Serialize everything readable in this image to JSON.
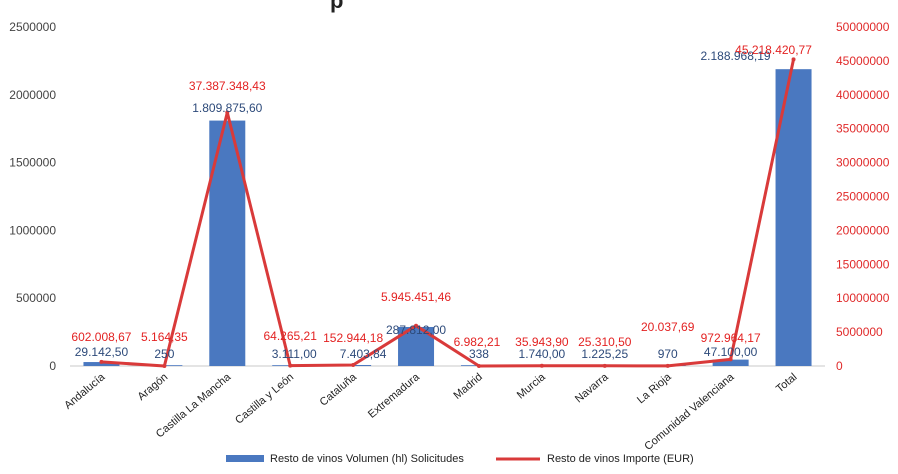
{
  "chart_data": {
    "type": "bar",
    "title_fragment": "p",
    "categories": [
      "Andalucía",
      "Aragón",
      "Castilla La Mancha",
      "Castilla y León",
      "Cataluña",
      "Extremadura",
      "Madrid",
      "Murcia",
      "Navarra",
      "La Rioja",
      "Comunidad Valenciana",
      "Total"
    ],
    "series": [
      {
        "name": "Resto de vinos Volumen (hl) Solicitudes",
        "type": "bar",
        "axis": "left",
        "color": "#4a78c0",
        "values": [
          29142.5,
          250,
          1809875.6,
          3111,
          7403.84,
          287812,
          338,
          1740,
          1225.25,
          970,
          47100,
          2188968.19
        ],
        "labels": [
          "29.142,50",
          "250",
          "1.809.875,60",
          "3.111,00",
          "7.403,84",
          "287.812,00",
          "338",
          "1.740,00",
          "1.225,25",
          "970",
          "47.100,00",
          "2.188.968,19"
        ]
      },
      {
        "name": "Resto de vinos Importe (EUR)",
        "type": "line",
        "axis": "right",
        "color": "#d93a3a",
        "values": [
          602008.67,
          5164.35,
          37387348.43,
          64265.21,
          152944.18,
          5945451.46,
          6982.21,
          35943.9,
          25310.5,
          20037.69,
          972964.17,
          45218420.77
        ],
        "labels": [
          "602.008,67",
          "5.164,35",
          "37.387.348,43",
          "64.265,21",
          "152.944,18",
          "5.945.451,46",
          "6.982,21",
          "35.943,90",
          "25.310,50",
          "20.037,69",
          "972.964,17",
          "45.218.420,77"
        ]
      }
    ],
    "left_axis": {
      "ylim": [
        0,
        2500000
      ],
      "ticks": [
        "0",
        "500000",
        "1000000",
        "1500000",
        "2000000",
        "2500000"
      ]
    },
    "right_axis": {
      "ylim": [
        0,
        50000000
      ],
      "ticks": [
        "0",
        "5000000",
        "10000000",
        "15000000",
        "20000000",
        "25000000",
        "30000000",
        "35000000",
        "40000000",
        "45000000",
        "50000000"
      ]
    },
    "legend_position": "bottom",
    "grid": false
  }
}
